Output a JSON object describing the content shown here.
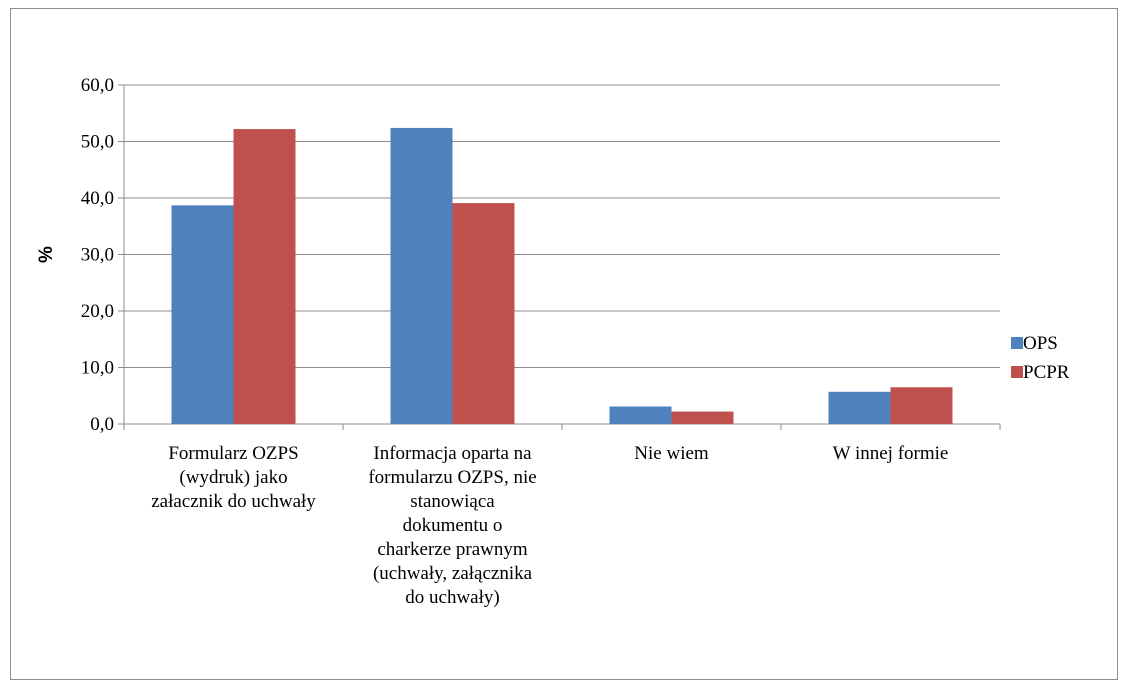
{
  "chart_data": {
    "type": "bar",
    "categories": [
      [
        "Formularz OZPS",
        "(wydruk) jako",
        "załacznik do uchwały"
      ],
      [
        "Informacja oparta na",
        "formularzu OZPS, nie",
        "stanowiąca",
        "dokumentu o",
        "charkerze prawnym",
        "(uchwały, załącznika",
        "do uchwały)"
      ],
      [
        "Nie wiem"
      ],
      [
        "W innej formie"
      ]
    ],
    "series": [
      {
        "name": "OPS",
        "color": "#4f81bd",
        "values": [
          38.7,
          52.4,
          3.1,
          5.7
        ]
      },
      {
        "name": "PCPR",
        "color": "#c0504d",
        "values": [
          52.2,
          39.1,
          2.2,
          6.5
        ]
      }
    ],
    "ylabel": "%",
    "ylim": [
      0,
      60
    ],
    "yticks": [
      "0,0",
      "10,0",
      "20,0",
      "30,0",
      "40,0",
      "50,0",
      "60,0"
    ],
    "grid": true,
    "legend": "right"
  }
}
